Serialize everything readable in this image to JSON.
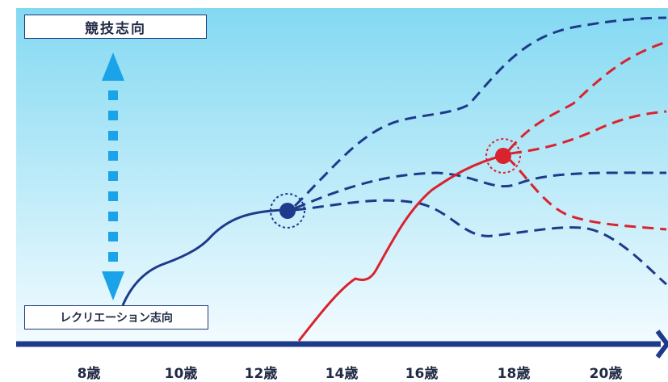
{
  "labels": {
    "top": "競技志向",
    "bottom": "レクリエーション志向"
  },
  "ages": [
    "8歳",
    "10歳",
    "12歳",
    "14歳",
    "16歳",
    "18歳",
    "20歳"
  ],
  "colors": {
    "background_top": "#83d9f2",
    "background_bottom": "#f2fbff",
    "navy": "#1e3a8a",
    "red": "#d9232e",
    "arrow": "#1aa3e8"
  }
}
